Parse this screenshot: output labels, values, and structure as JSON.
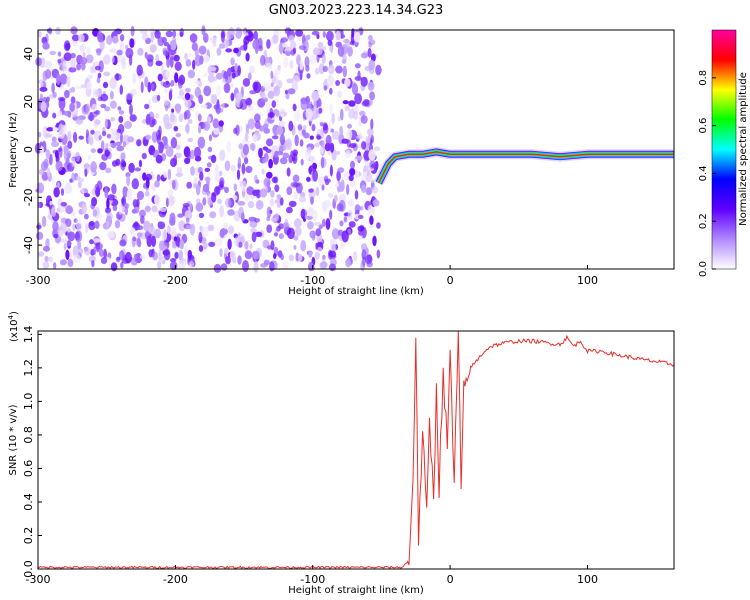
{
  "title": "GN03.2023.223.14.34.G23",
  "chart_data": [
    {
      "type": "heatmap",
      "xlabel": "Height of straight line (km)",
      "ylabel": "Frequency (Hz)",
      "xlim": [
        -300,
        163
      ],
      "ylim": [
        -50,
        50
      ],
      "xticks": [
        -300,
        -200,
        -100,
        0,
        100
      ],
      "yticks": [
        -40,
        -20,
        0,
        20,
        40
      ],
      "colorbar": {
        "label": "Normalized spectral amplitude",
        "ticks": [
          "0.0",
          "0.2",
          "0.4",
          "0.6",
          "0.8"
        ],
        "range": [
          0,
          1
        ],
        "colormap": [
          "#ffffff",
          "#b088ff",
          "#6000ff",
          "#0000ff",
          "#00ffff",
          "#00ff00",
          "#ffff00",
          "#ff0000",
          "#ff00a0"
        ]
      },
      "noise_region_x": [
        -300,
        -52
      ],
      "signal_line": {
        "x": [
          -52,
          -45,
          -40,
          -30,
          -20,
          -10,
          0,
          20,
          40,
          60,
          80,
          100,
          120,
          140,
          163
        ],
        "frequency_hz": [
          -14,
          -6,
          -3,
          -2,
          -2,
          -1,
          -2,
          -2,
          -2,
          -2,
          -3,
          -2,
          -2,
          -2,
          -2
        ]
      },
      "grid": false
    },
    {
      "type": "line",
      "xlabel": "Height of straight line (km)",
      "ylabel": "SNR (10 * v/v)",
      "y_multiplier": "(x10",
      "y_exponent": "4",
      "y_multiplier_close": ")",
      "xlim": [
        -300,
        163
      ],
      "ylim": [
        0,
        1.42
      ],
      "xticks": [
        -300,
        -200,
        -100,
        0,
        100
      ],
      "yticks": [
        0.0,
        0.2,
        0.4,
        0.6,
        0.8,
        1.0,
        1.2,
        1.4
      ],
      "color": "#e8302a",
      "series": [
        {
          "x": [
            -300,
            -250,
            -200,
            -150,
            -100,
            -50,
            -35,
            -30,
            -27,
            -25,
            -23,
            -20,
            -17,
            -15,
            -12,
            -10,
            -8,
            -5,
            -2,
            0,
            3,
            6,
            8,
            10,
            15,
            20,
            25,
            30,
            40,
            50,
            60,
            70,
            80,
            85,
            90,
            95,
            100,
            110,
            120,
            140,
            163
          ],
          "y": [
            0.01,
            0.01,
            0.01,
            0.01,
            0.01,
            0.01,
            0.01,
            0.05,
            0.55,
            1.38,
            0.2,
            0.8,
            0.3,
            0.9,
            0.4,
            1.1,
            0.5,
            1.2,
            0.7,
            1.3,
            0.5,
            1.42,
            0.45,
            1.05,
            1.2,
            1.25,
            1.3,
            1.33,
            1.35,
            1.36,
            1.36,
            1.35,
            1.34,
            1.38,
            1.33,
            1.36,
            1.3,
            1.3,
            1.28,
            1.25,
            1.22
          ]
        }
      ],
      "grid": false
    }
  ]
}
